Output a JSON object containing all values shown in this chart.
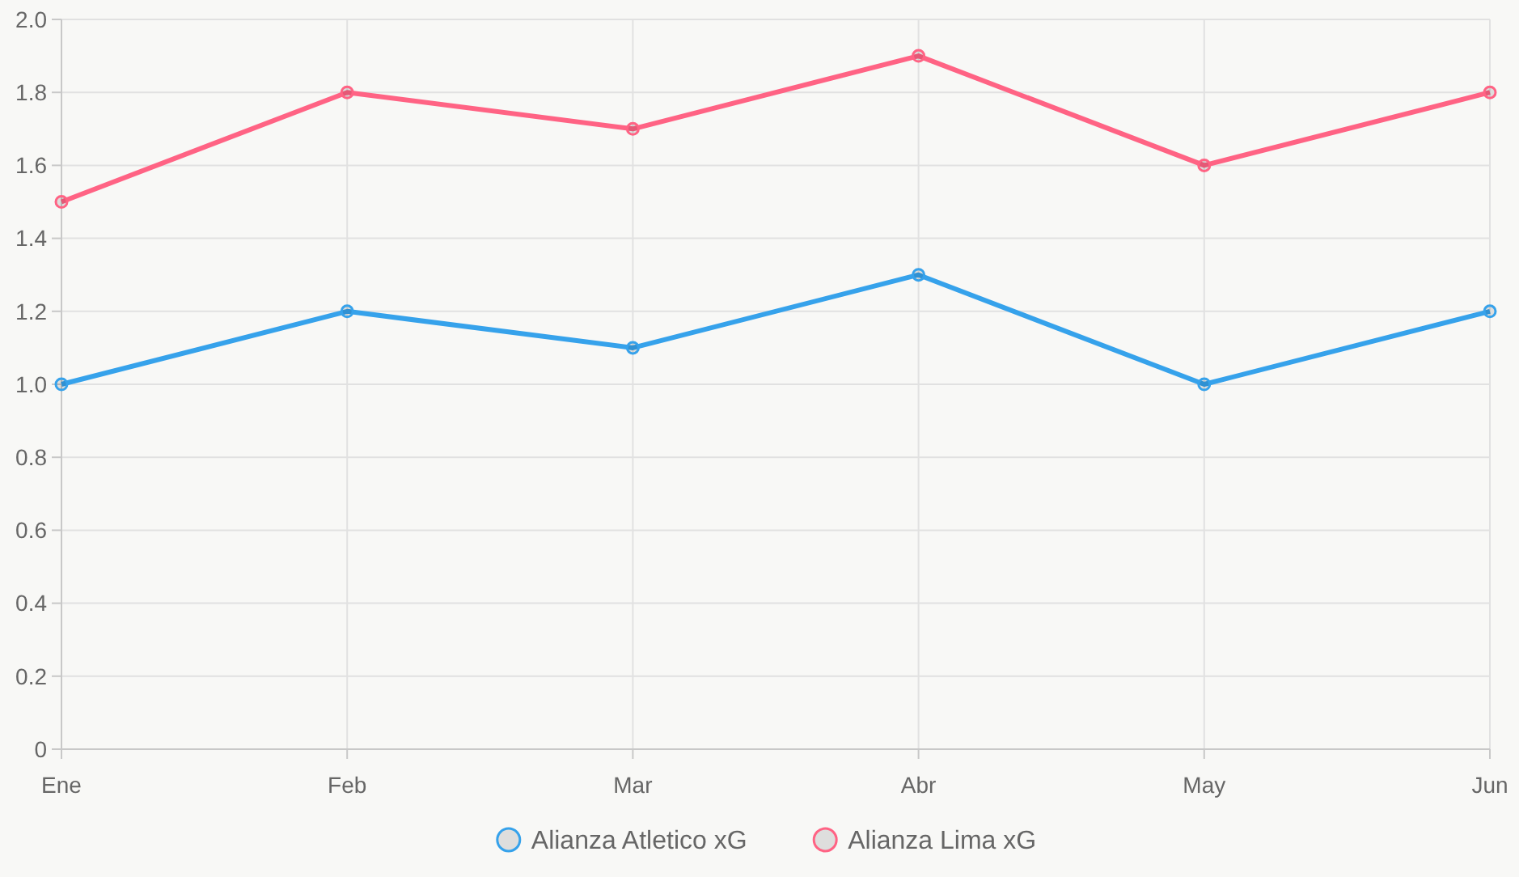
{
  "chart_data": {
    "type": "line",
    "categories": [
      "Ene",
      "Feb",
      "Mar",
      "Abr",
      "May",
      "Jun"
    ],
    "series": [
      {
        "name": "Alianza Atletico xG",
        "color": "#36a2eb",
        "values": [
          1.0,
          1.2,
          1.1,
          1.3,
          1.0,
          1.2
        ]
      },
      {
        "name": "Alianza Lima xG",
        "color": "#ff6384",
        "values": [
          1.5,
          1.8,
          1.7,
          1.9,
          1.6,
          1.8
        ]
      }
    ],
    "ylim": [
      0,
      2
    ],
    "yticks": [
      0,
      0.2,
      0.4,
      0.6,
      0.8,
      {
        "value": 1,
        "label": "1.0"
      },
      1.2,
      1.4,
      1.6,
      1.8,
      {
        "value": 2,
        "label": "2.0"
      }
    ],
    "grid": true,
    "legend": "bottom",
    "marker": "circle",
    "line_style": "solid"
  }
}
